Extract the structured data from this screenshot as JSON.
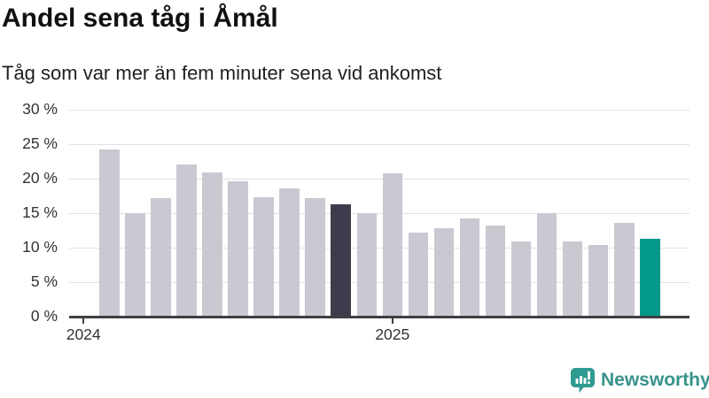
{
  "title": "Andel sena tåg i Åmål",
  "subtitle": "Tåg som var mer än fem minuter sena vid ankomst",
  "logo": {
    "text": "Newsworthy",
    "icon": "bar-chart-speech-bubble-icon",
    "color": "#37938b",
    "icon_color": "#2f9a90"
  },
  "colors": {
    "bar_default": "#cac9d2",
    "bar_dark": "#3e3c4c",
    "bar_teal": "#00998c",
    "grid": "#e2e1e5",
    "axis": "#3f3f44",
    "label": "#333333"
  },
  "chart_data": {
    "type": "bar",
    "title": "Andel sena tåg i Åmål",
    "subtitle": "Tåg som var mer än fem minuter sena vid ankomst",
    "unit": "%",
    "values": [
      24.3,
      15.1,
      17.2,
      22.1,
      21.0,
      19.7,
      17.4,
      18.7,
      17.2,
      16.4,
      15.1,
      20.8,
      12.2,
      12.9,
      14.3,
      13.3,
      11.0,
      15.1,
      11.0,
      10.4,
      13.6,
      11.4
    ],
    "highlight_dark_index": 9,
    "highlight_teal_index": 21,
    "ylim": [
      0,
      30
    ],
    "y_ticks": [
      0,
      5,
      10,
      15,
      20,
      25,
      30
    ],
    "y_tick_format": "{v} %",
    "x_ticks": [
      {
        "label": "2024",
        "bar_index": -1
      },
      {
        "label": "2025",
        "bar_index": 11
      }
    ],
    "grid": "horizontal",
    "legend": "none"
  }
}
